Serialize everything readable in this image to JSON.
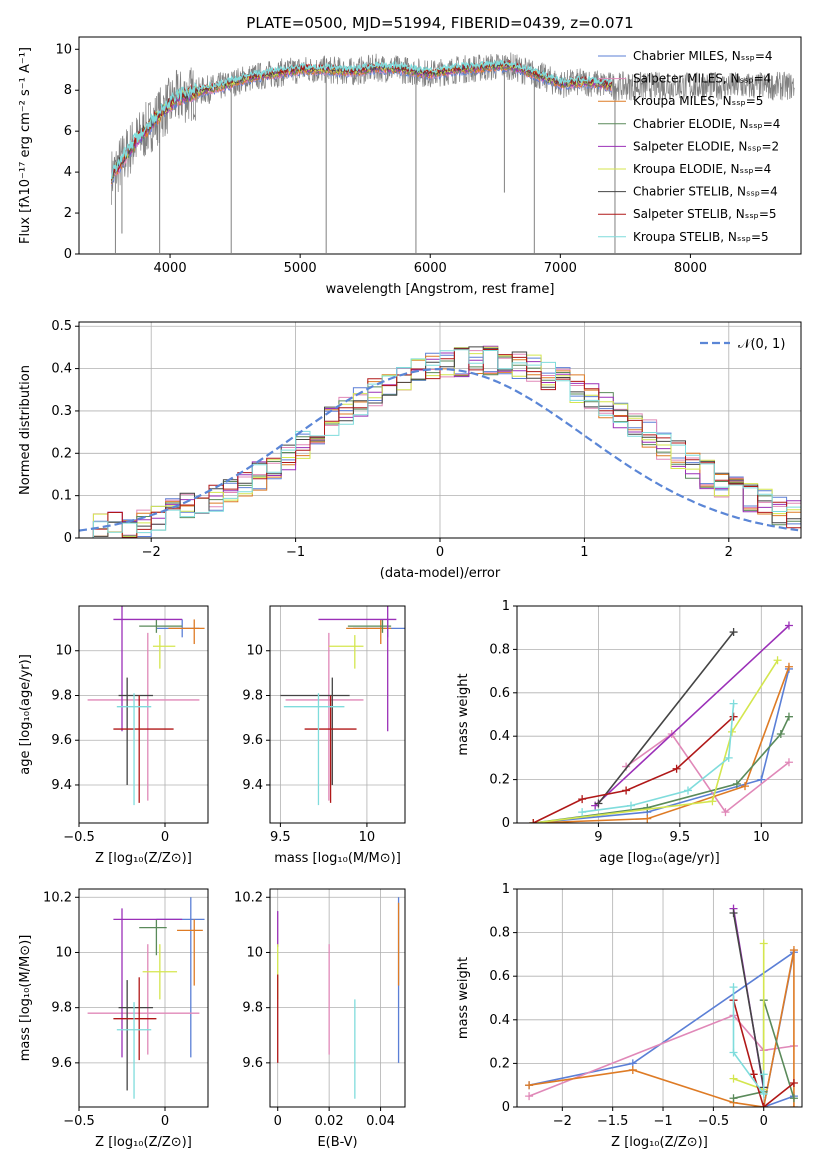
{
  "chart_data": [
    {
      "type": "line",
      "title": "PLATE=0500, MJD=51994, FIBERID=0439, z=0.071",
      "xlabel": "wavelength [Angstrom, rest frame]",
      "ylabel": "Flux [fλ10⁻¹⁷ erg cm⁻² s⁻¹ A⁻¹]",
      "xlim": [
        3300,
        8850
      ],
      "ylim": [
        0,
        10.6
      ],
      "xticks": [
        4000,
        5000,
        6000,
        7000,
        8000
      ],
      "yticks": [
        0,
        2,
        4,
        6,
        8,
        10
      ],
      "legend": "right",
      "series": [
        {
          "name": "Chabrier MILES, N_SSP=4",
          "color": "#5b7fd6"
        },
        {
          "name": "Salpeter MILES, N_SSP=4",
          "color": "#e088b8"
        },
        {
          "name": "Kroupa MILES, N_SSP=5",
          "color": "#de7b25"
        },
        {
          "name": "Chabrier ELODIE, N_SSP=4",
          "color": "#5a8a5a"
        },
        {
          "name": "Salpeter ELODIE, N_SSP=2",
          "color": "#9b30b8"
        },
        {
          "name": "Kroupa ELODIE, N_SSP=4",
          "color": "#d4e64e"
        },
        {
          "name": "Chabrier STELIB, N_SSP=4",
          "color": "#444444"
        },
        {
          "name": "Salpeter STELIB, N_SSP=5",
          "color": "#b01818"
        },
        {
          "name": "Kroupa STELIB, N_SSP=5",
          "color": "#7fdcdc"
        }
      ],
      "data_color": "#808080",
      "model_envelope": {
        "x": [
          3550,
          3700,
          3850,
          3950,
          4050,
          4200,
          4400,
          4600,
          4800,
          5000,
          5200,
          5400,
          5600,
          5800,
          6000,
          6200,
          6400,
          6600,
          6800,
          7000,
          7200,
          7400
        ],
        "y": [
          3.8,
          5.2,
          6.3,
          7.0,
          7.6,
          7.9,
          8.2,
          8.6,
          8.8,
          9.0,
          9.0,
          8.9,
          9.1,
          9.0,
          8.8,
          9.0,
          9.1,
          9.2,
          8.8,
          8.3,
          8.4,
          8.2
        ]
      },
      "data_dips": [
        {
          "x": 3580,
          "y": 0
        },
        {
          "x": 3630,
          "y": 1.0
        },
        {
          "x": 3920,
          "y": 0
        },
        {
          "x": 4470,
          "y": 0
        },
        {
          "x": 5200,
          "y": 0
        },
        {
          "x": 5890,
          "y": 0
        },
        {
          "x": 6570,
          "y": 3.0
        },
        {
          "x": 6800,
          "y": 0
        },
        {
          "x": 7420,
          "y": 0
        }
      ]
    },
    {
      "type": "histogram",
      "xlabel": "(data-model)/error",
      "ylabel": "Normed distribution",
      "xlim": [
        -2.5,
        2.5
      ],
      "ylim": [
        0,
        0.51
      ],
      "xticks": [
        -2,
        -1,
        0,
        1,
        2
      ],
      "yticks": [
        0.0,
        0.1,
        0.2,
        0.3,
        0.4,
        0.5
      ],
      "grid": true,
      "legend": "top-right",
      "reference_curve": {
        "name": "N(0,1)",
        "label": "𝒩(0, 1)",
        "mean": 0,
        "sigma": 1,
        "color": "#5b86d6"
      },
      "bin_width": 0.1,
      "bin_start": -2.5,
      "base_shape": [
        0.022,
        0.03,
        0.028,
        0.033,
        0.038,
        0.048,
        0.06,
        0.072,
        0.083,
        0.097,
        0.11,
        0.128,
        0.148,
        0.168,
        0.195,
        0.22,
        0.245,
        0.275,
        0.3,
        0.322,
        0.345,
        0.36,
        0.375,
        0.39,
        0.405,
        0.41,
        0.415,
        0.42,
        0.42,
        0.415,
        0.41,
        0.4,
        0.385,
        0.37,
        0.352,
        0.335,
        0.315,
        0.292,
        0.27,
        0.245,
        0.22,
        0.196,
        0.172,
        0.15,
        0.13,
        0.112,
        0.095,
        0.08,
        0.066,
        0.055
      ],
      "series_colors": [
        "#5b7fd6",
        "#e088b8",
        "#de7b25",
        "#5a8a5a",
        "#9b30b8",
        "#d4e64e",
        "#444444",
        "#b01818",
        "#7fdcdc"
      ]
    },
    {
      "type": "errorbar",
      "xlabel": "Z [log₁₀(Z/Z⊙)]",
      "ylabel": "age  [log₁₀(age/yr)]",
      "xlim": [
        -0.5,
        0.25
      ],
      "ylim": [
        9.23,
        10.2
      ],
      "xticks": [
        -0.5,
        0.0
      ],
      "yticks": [
        9.4,
        9.6,
        9.8,
        10.0
      ],
      "grid": true,
      "points": [
        {
          "x": 0.1,
          "y": 10.1,
          "xerr": [
            0.15,
            0.1
          ],
          "yerr": [
            0.04,
            0.04
          ],
          "color": "#5b7fd6"
        },
        {
          "x": -0.1,
          "y": 9.78,
          "xerr": [
            0.35,
            0.3
          ],
          "yerr": [
            0.45,
            0.3
          ],
          "color": "#e088b8"
        },
        {
          "x": 0.17,
          "y": 10.1,
          "xerr": [
            0.15,
            0.06
          ],
          "yerr": [
            0.07,
            0.04
          ],
          "color": "#de7b25"
        },
        {
          "x": -0.05,
          "y": 10.11,
          "xerr": [
            0.1,
            0.15
          ],
          "yerr": [
            0.03,
            0.03
          ],
          "color": "#5a8a5a"
        },
        {
          "x": -0.25,
          "y": 10.14,
          "xerr": [
            0.05,
            0.35
          ],
          "yerr": [
            0.5,
            0.15
          ],
          "color": "#9b30b8"
        },
        {
          "x": -0.03,
          "y": 10.02,
          "xerr": [
            0.04,
            0.09
          ],
          "yerr": [
            0.1,
            0.05
          ],
          "color": "#d4e64e"
        },
        {
          "x": -0.22,
          "y": 9.8,
          "xerr": [
            0.05,
            0.15
          ],
          "yerr": [
            0.4,
            0.08
          ],
          "color": "#444444"
        },
        {
          "x": -0.15,
          "y": 9.65,
          "xerr": [
            0.15,
            0.2
          ],
          "yerr": [
            0.33,
            0.15
          ],
          "color": "#b01818"
        },
        {
          "x": -0.18,
          "y": 9.75,
          "xerr": [
            0.1,
            0.1
          ],
          "yerr": [
            0.44,
            0.06
          ],
          "color": "#7fdcdc"
        }
      ]
    },
    {
      "type": "errorbar",
      "xlabel": "mass [log₁₀(M/M⊙)]",
      "ylabel": "",
      "xlim": [
        9.44,
        10.22
      ],
      "ylim": [
        9.23,
        10.2
      ],
      "xticks": [
        9.5,
        10.0
      ],
      "yticks": [
        9.4,
        9.6,
        9.8,
        10.0
      ],
      "grid": true,
      "points": [
        {
          "x": 10.12,
          "y": 10.1,
          "xerr": [
            0.2,
            0.1
          ],
          "yerr": [
            0.04,
            0.04
          ],
          "color": "#5b7fd6"
        },
        {
          "x": 9.78,
          "y": 9.78,
          "xerr": [
            0.25,
            0.2
          ],
          "yerr": [
            0.45,
            0.3
          ],
          "color": "#e088b8"
        },
        {
          "x": 10.08,
          "y": 10.1,
          "xerr": [
            0.2,
            0.06
          ],
          "yerr": [
            0.07,
            0.04
          ],
          "color": "#de7b25"
        },
        {
          "x": 10.09,
          "y": 10.11,
          "xerr": [
            0.2,
            0.05
          ],
          "yerr": [
            0.03,
            0.03
          ],
          "color": "#5a8a5a"
        },
        {
          "x": 10.12,
          "y": 10.14,
          "xerr": [
            0.4,
            0.05
          ],
          "yerr": [
            0.5,
            0.15
          ],
          "color": "#9b30b8"
        },
        {
          "x": 9.93,
          "y": 10.02,
          "xerr": [
            0.15,
            0.05
          ],
          "yerr": [
            0.1,
            0.05
          ],
          "color": "#d4e64e"
        },
        {
          "x": 9.8,
          "y": 9.8,
          "xerr": [
            0.3,
            0.1
          ],
          "yerr": [
            0.4,
            0.08
          ],
          "color": "#444444"
        },
        {
          "x": 9.79,
          "y": 9.65,
          "xerr": [
            0.15,
            0.15
          ],
          "yerr": [
            0.33,
            0.15
          ],
          "color": "#b01818"
        },
        {
          "x": 9.72,
          "y": 9.75,
          "xerr": [
            0.2,
            0.15
          ],
          "yerr": [
            0.44,
            0.06
          ],
          "color": "#7fdcdc"
        }
      ]
    },
    {
      "type": "line",
      "xlabel": "age  [log₁₀(age/yr)]",
      "ylabel": "mass weight",
      "xlim": [
        8.5,
        10.25
      ],
      "ylim": [
        0,
        1.0
      ],
      "xticks": [
        9.0,
        9.5,
        10.0
      ],
      "yticks": [
        0.0,
        0.2,
        0.4,
        0.6,
        0.8,
        1.0
      ],
      "grid": true,
      "series": [
        {
          "color": "#5b7fd6",
          "x": [
            8.6,
            9.3,
            10.0,
            10.17
          ],
          "y": [
            0.0,
            0.05,
            0.2,
            0.71
          ]
        },
        {
          "color": "#e088b8",
          "x": [
            9.17,
            9.45,
            9.78,
            10.17
          ],
          "y": [
            0.26,
            0.41,
            0.05,
            0.28
          ]
        },
        {
          "color": "#de7b25",
          "x": [
            8.6,
            9.3,
            9.9,
            10.17
          ],
          "y": [
            0.0,
            0.02,
            0.17,
            0.72
          ]
        },
        {
          "color": "#5a8a5a",
          "x": [
            8.6,
            9.3,
            9.85,
            10.12,
            10.17
          ],
          "y": [
            0.0,
            0.07,
            0.18,
            0.41,
            0.49
          ]
        },
        {
          "color": "#9b30b8",
          "x": [
            8.98,
            10.17
          ],
          "y": [
            0.08,
            0.91
          ]
        },
        {
          "color": "#d4e64e",
          "x": [
            8.6,
            9.7,
            9.82,
            10.1
          ],
          "y": [
            0.0,
            0.1,
            0.42,
            0.75
          ]
        },
        {
          "color": "#444444",
          "x": [
            9.0,
            9.83
          ],
          "y": [
            0.09,
            0.88
          ]
        },
        {
          "color": "#b01818",
          "x": [
            8.6,
            8.9,
            9.17,
            9.48,
            9.83
          ],
          "y": [
            0.0,
            0.11,
            0.15,
            0.25,
            0.49
          ]
        },
        {
          "color": "#7fdcdc",
          "x": [
            8.9,
            9.2,
            9.55,
            9.8,
            9.83
          ],
          "y": [
            0.05,
            0.08,
            0.15,
            0.3,
            0.55
          ]
        }
      ]
    },
    {
      "type": "errorbar",
      "xlabel": "Z [log₁₀(Z/Z⊙)]",
      "ylabel": "mass [log₁₀(M/M⊙)]",
      "xlim": [
        -0.5,
        0.25
      ],
      "ylim": [
        9.44,
        10.23
      ],
      "xticks": [
        -0.5,
        0.0
      ],
      "yticks": [
        9.6,
        9.8,
        10.0,
        10.2
      ],
      "grid": true,
      "points": [
        {
          "x": 0.15,
          "y": 10.12,
          "xerr": [
            0.2,
            0.08
          ],
          "yerr": [
            0.5,
            0.08
          ],
          "color": "#5b7fd6"
        },
        {
          "x": -0.1,
          "y": 9.78,
          "xerr": [
            0.35,
            0.3
          ],
          "yerr": [
            0.15,
            0.25
          ],
          "color": "#e088b8"
        },
        {
          "x": 0.17,
          "y": 10.08,
          "xerr": [
            0.1,
            0.05
          ],
          "yerr": [
            0.2,
            0.04
          ],
          "color": "#de7b25"
        },
        {
          "x": -0.05,
          "y": 10.09,
          "xerr": [
            0.1,
            0.06
          ],
          "yerr": [
            0.1,
            0.03
          ],
          "color": "#5a8a5a"
        },
        {
          "x": -0.25,
          "y": 10.12,
          "xerr": [
            0.05,
            0.35
          ],
          "yerr": [
            0.5,
            0.04
          ],
          "color": "#9b30b8"
        },
        {
          "x": -0.03,
          "y": 9.93,
          "xerr": [
            0.1,
            0.1
          ],
          "yerr": [
            0.1,
            0.1
          ],
          "color": "#d4e64e"
        },
        {
          "x": -0.22,
          "y": 9.8,
          "xerr": [
            0.05,
            0.15
          ],
          "yerr": [
            0.3,
            0.1
          ],
          "color": "#444444"
        },
        {
          "x": -0.15,
          "y": 9.76,
          "xerr": [
            0.15,
            0.1
          ],
          "yerr": [
            0.15,
            0.15
          ],
          "color": "#b01818"
        },
        {
          "x": -0.18,
          "y": 9.72,
          "xerr": [
            0.1,
            0.1
          ],
          "yerr": [
            0.25,
            0.1
          ],
          "color": "#7fdcdc"
        }
      ]
    },
    {
      "type": "errorbar",
      "xlabel": "E(B-V)",
      "ylabel": "",
      "xlim": [
        -0.003,
        0.0495
      ],
      "ylim": [
        9.44,
        10.23
      ],
      "xticks": [
        0.0,
        0.02,
        0.04
      ],
      "yticks": [
        9.6,
        9.8,
        10.0,
        10.2
      ],
      "grid": true,
      "points": [
        {
          "x": 0.047,
          "y": 10.12,
          "xerr": [
            0,
            0
          ],
          "yerr": [
            0.52,
            0.08
          ],
          "color": "#5b7fd6"
        },
        {
          "x": 0.02,
          "y": 9.78,
          "xerr": [
            0,
            0
          ],
          "yerr": [
            0.15,
            0.25
          ],
          "color": "#e088b8"
        },
        {
          "x": 0.047,
          "y": 10.08,
          "xerr": [
            0,
            0
          ],
          "yerr": [
            0.2,
            0.1
          ],
          "color": "#de7b25"
        },
        {
          "x": 0.0,
          "y": 10.12,
          "xerr": [
            0,
            0
          ],
          "yerr": [
            0.1,
            0.03
          ],
          "color": "#9b30b8"
        },
        {
          "x": 0.0,
          "y": 9.93,
          "xerr": [
            0,
            0
          ],
          "yerr": [
            0.1,
            0.1
          ],
          "color": "#d4e64e"
        },
        {
          "x": 0.0,
          "y": 9.76,
          "xerr": [
            0,
            0
          ],
          "yerr": [
            0.16,
            0.16
          ],
          "color": "#b01818"
        },
        {
          "x": 0.03,
          "y": 9.72,
          "xerr": [
            0,
            0
          ],
          "yerr": [
            0.25,
            0.11
          ],
          "color": "#7fdcdc"
        }
      ]
    },
    {
      "type": "line",
      "xlabel": "Z [log₁₀(Z/Z⊙)]",
      "ylabel": "mass weight",
      "xlim": [
        -2.45,
        0.38
      ],
      "ylim": [
        0,
        1.0
      ],
      "xticks": [
        -2.0,
        -1.5,
        -1.0,
        -0.5,
        0.0
      ],
      "yticks": [
        0.0,
        0.2,
        0.4,
        0.6,
        0.8,
        1.0
      ],
      "grid": true,
      "series": [
        {
          "color": "#5b7fd6",
          "x": [
            -2.33,
            -1.3,
            0.3,
            0.0,
            0.3
          ],
          "y": [
            0.1,
            0.2,
            0.71,
            0.0,
            0.05
          ]
        },
        {
          "color": "#e088b8",
          "x": [
            -2.33,
            -0.3,
            0.0,
            0.3
          ],
          "y": [
            0.05,
            0.42,
            0.26,
            0.28
          ]
        },
        {
          "color": "#de7b25",
          "x": [
            -2.33,
            -1.3,
            -0.3,
            0.0,
            0.3,
            0.3
          ],
          "y": [
            0.1,
            0.17,
            0.02,
            0.0,
            0.72,
            0.0
          ]
        },
        {
          "color": "#5a8a5a",
          "x": [
            -0.3,
            0.0,
            0.0,
            0.3
          ],
          "y": [
            0.04,
            0.07,
            0.49,
            0.04
          ]
        },
        {
          "color": "#9b30b8",
          "x": [
            -0.3,
            0.0
          ],
          "y": [
            0.91,
            0.08
          ]
        },
        {
          "color": "#d4e64e",
          "x": [
            -0.3,
            0.0,
            0.0
          ],
          "y": [
            0.13,
            0.08,
            0.75
          ]
        },
        {
          "color": "#444444",
          "x": [
            -0.3,
            0.0
          ],
          "y": [
            0.89,
            0.09
          ]
        },
        {
          "color": "#b01818",
          "x": [
            -0.3,
            -0.1,
            0.0,
            0.3
          ],
          "y": [
            0.49,
            0.15,
            0.0,
            0.11
          ]
        },
        {
          "color": "#7fdcdc",
          "x": [
            -0.3,
            -0.3,
            0.0,
            0.0
          ],
          "y": [
            0.55,
            0.25,
            0.06,
            0.15
          ]
        }
      ]
    }
  ]
}
